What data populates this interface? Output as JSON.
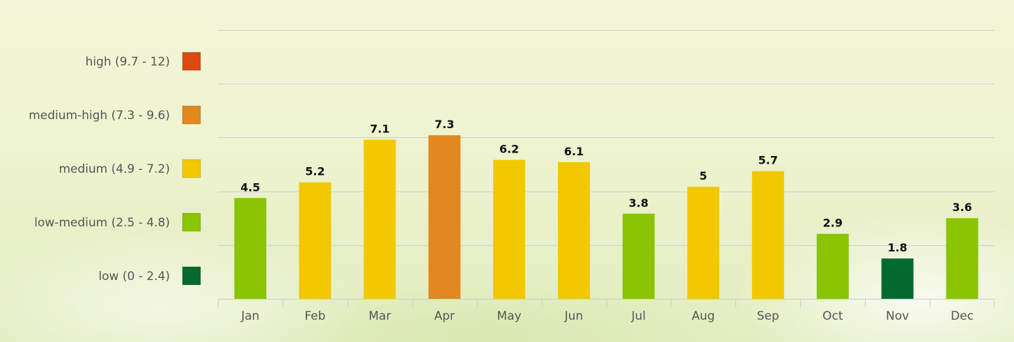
{
  "chart_data": {
    "type": "bar",
    "title": "",
    "xlabel": "",
    "ylabel": "",
    "categories": [
      "Jan",
      "Feb",
      "Mar",
      "Apr",
      "May",
      "Jun",
      "Jul",
      "Aug",
      "Sep",
      "Oct",
      "Nov",
      "Dec"
    ],
    "values": [
      4.5,
      5.2,
      7.1,
      7.3,
      6.2,
      6.1,
      3.8,
      5,
      5.7,
      2.9,
      1.8,
      3.6
    ],
    "value_labels": [
      "4.5",
      "5.2",
      "7.1",
      "7.3",
      "6.2",
      "6.1",
      "3.8",
      "5",
      "5.7",
      "2.9",
      "1.8",
      "3.6"
    ],
    "ylim": [
      0,
      12
    ],
    "grid": true,
    "legend_placement": "left",
    "legend": [
      {
        "label": "high (9.7 - 12)",
        "color": "#dc4a0f"
      },
      {
        "label": "medium-high (7.3 - 9.6)",
        "color": "#e2881e"
      },
      {
        "label": "medium (4.9 - 7.2)",
        "color": "#f2c800"
      },
      {
        "label": "low-medium (2.5 - 4.8)",
        "color": "#8bc402"
      },
      {
        "label": "low (0 - 2.4)",
        "color": "#036a2f"
      }
    ],
    "bar_colors": [
      "#8bc402",
      "#f2c800",
      "#f2c800",
      "#e2881e",
      "#f2c800",
      "#f2c800",
      "#8bc402",
      "#f2c800",
      "#f2c800",
      "#8bc402",
      "#036a2f",
      "#8bc402"
    ]
  }
}
